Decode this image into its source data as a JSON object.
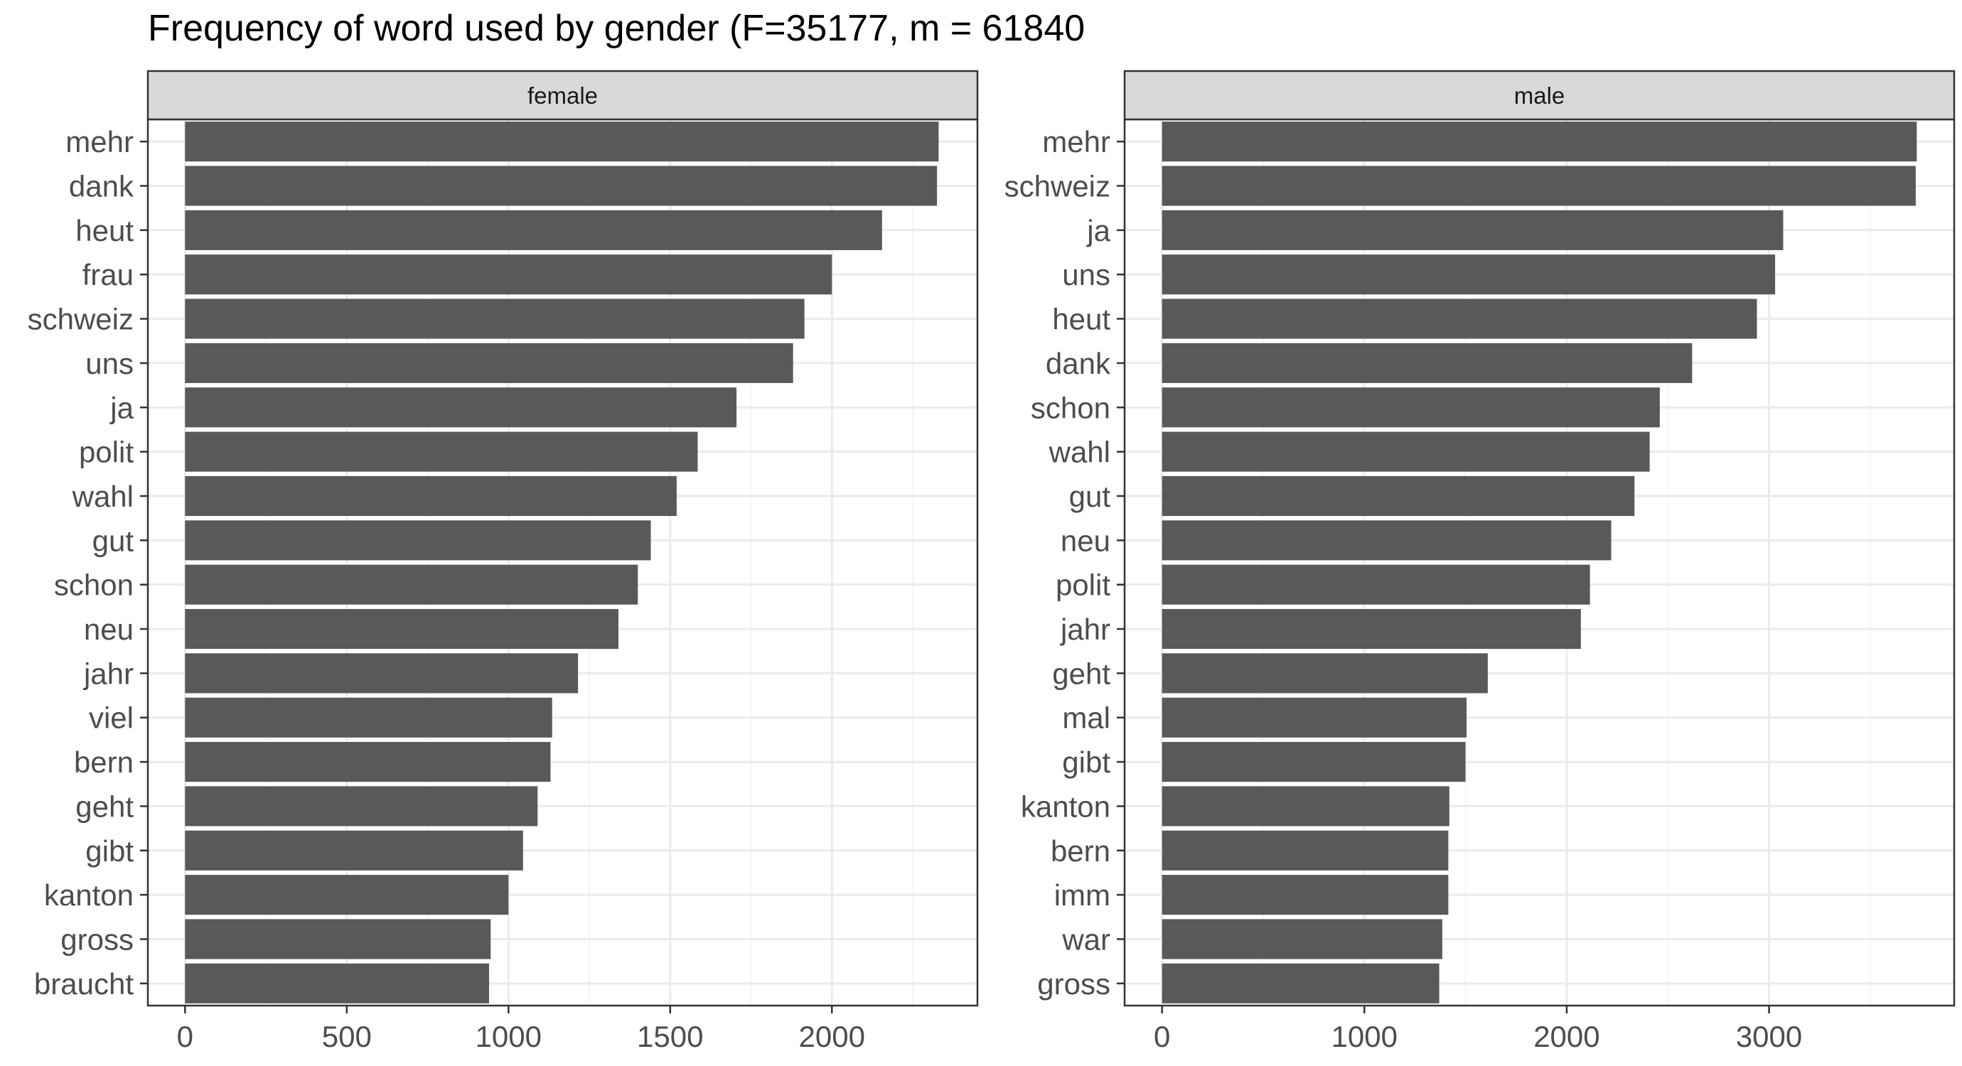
{
  "title": "Frequency of word used by gender (F=35177, m = 61840",
  "chart_data": [
    {
      "type": "bar",
      "orientation": "horizontal",
      "panel": "female",
      "categories": [
        "mehr",
        "dank",
        "heut",
        "frau",
        "schweiz",
        "uns",
        "ja",
        "polit",
        "wahl",
        "gut",
        "schon",
        "neu",
        "jahr",
        "viel",
        "bern",
        "geht",
        "gibt",
        "kanton",
        "gross",
        "braucht"
      ],
      "values": [
        2330,
        2325,
        2155,
        2000,
        1915,
        1880,
        1705,
        1585,
        1520,
        1440,
        1400,
        1340,
        1215,
        1135,
        1130,
        1090,
        1045,
        1000,
        945,
        940
      ],
      "xlim": [
        -115,
        2450
      ],
      "xticks": [
        0,
        500,
        1000,
        1500,
        2000
      ],
      "grid": true
    },
    {
      "type": "bar",
      "orientation": "horizontal",
      "panel": "male",
      "categories": [
        "mehr",
        "schweiz",
        "ja",
        "uns",
        "heut",
        "dank",
        "schon",
        "wahl",
        "gut",
        "neu",
        "polit",
        "jahr",
        "geht",
        "mal",
        "gibt",
        "kanton",
        "bern",
        "imm",
        "war",
        "gross"
      ],
      "values": [
        3730,
        3725,
        3070,
        3030,
        2940,
        2620,
        2460,
        2410,
        2335,
        2220,
        2115,
        2070,
        1610,
        1505,
        1500,
        1420,
        1415,
        1415,
        1385,
        1370
      ],
      "xlim": [
        -185,
        3915
      ],
      "xticks": [
        0,
        1000,
        2000,
        3000
      ],
      "grid": true
    }
  ],
  "colors": {
    "bar": "#595959",
    "strip_bg": "#d9d9d9",
    "panel_border": "#333333",
    "grid_major": "#ebebeb",
    "grid_minor": "#f5f5f5",
    "tick_text": "#4d4d4d"
  }
}
